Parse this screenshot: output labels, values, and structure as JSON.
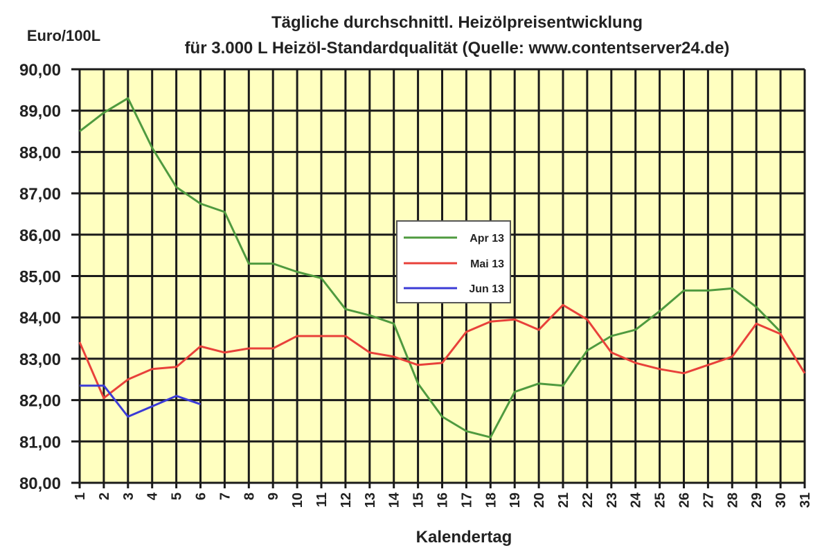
{
  "chart_data": {
    "type": "line",
    "title": "Tägliche durchschnittl. Heizölpreisentwicklung",
    "subtitle": "für 3.000 L Heizöl-Standardqualität (Quelle: www.contentserver24.de)",
    "xlabel": "Kalendertag",
    "ylabel": "Euro/100L",
    "ylim": [
      80,
      90
    ],
    "yticks": [
      "80,00",
      "81,00",
      "82,00",
      "83,00",
      "84,00",
      "85,00",
      "86,00",
      "87,00",
      "88,00",
      "89,00",
      "90,00"
    ],
    "x": [
      1,
      2,
      3,
      4,
      5,
      6,
      7,
      8,
      9,
      10,
      11,
      12,
      13,
      14,
      15,
      16,
      17,
      18,
      19,
      20,
      21,
      22,
      23,
      24,
      25,
      26,
      27,
      28,
      29,
      30,
      31
    ],
    "grid": true,
    "legend_position": "center",
    "series": [
      {
        "name": "Apr 13",
        "color": "#4f9a3f",
        "values": [
          88.5,
          88.95,
          89.3,
          88.1,
          87.15,
          86.75,
          86.55,
          85.3,
          85.3,
          85.1,
          84.95,
          84.2,
          84.05,
          83.85,
          82.4,
          81.6,
          81.25,
          81.1,
          82.2,
          82.4,
          82.35,
          83.2,
          83.55,
          83.7,
          84.15,
          84.65,
          84.65,
          84.7,
          84.25,
          83.65,
          null
        ]
      },
      {
        "name": "Mai 13",
        "color": "#e8413a",
        "values": [
          83.4,
          82.05,
          82.5,
          82.75,
          82.8,
          83.3,
          83.15,
          83.25,
          83.25,
          83.55,
          83.55,
          83.55,
          83.15,
          83.05,
          82.85,
          82.9,
          83.65,
          83.9,
          83.95,
          83.7,
          84.3,
          83.95,
          83.15,
          82.9,
          82.75,
          82.65,
          82.85,
          83.05,
          83.85,
          83.6,
          82.65
        ]
      },
      {
        "name": "Jun 13",
        "color": "#3b3bd6",
        "values": [
          82.35,
          82.35,
          81.6,
          81.85,
          82.1,
          81.9,
          null,
          null,
          null,
          null,
          null,
          null,
          null,
          null,
          null,
          null,
          null,
          null,
          null,
          null,
          null,
          null,
          null,
          null,
          null,
          null,
          null,
          null,
          null,
          null,
          null
        ]
      }
    ]
  },
  "style": {
    "plot_bg": "#ffffc0",
    "grid_color": "#1a1a1a",
    "legend_bg": "#ffffff"
  }
}
